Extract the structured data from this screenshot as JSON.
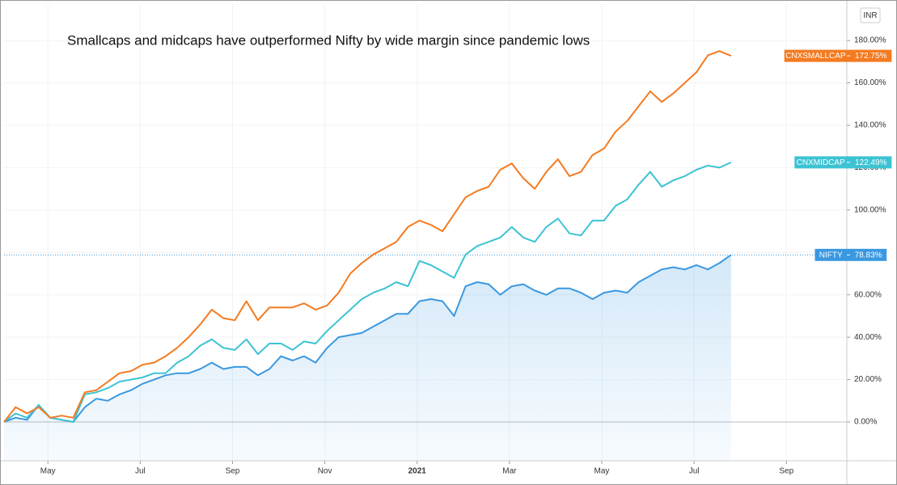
{
  "chart_data": {
    "type": "line",
    "title": "Smallcaps and midcaps have outperformed Nifty by wide margin since pandemic lows",
    "currency": "INR",
    "x": [
      3.05,
      3.3,
      3.55,
      3.8,
      4.05,
      4.3,
      4.55,
      4.8,
      5.05,
      5.3,
      5.55,
      5.8,
      6.05,
      6.3,
      6.55,
      6.8,
      7.05,
      7.3,
      7.55,
      7.8,
      8.05,
      8.3,
      8.55,
      8.8,
      9.05,
      9.3,
      9.55,
      9.8,
      10.05,
      10.3,
      10.55,
      10.8,
      11.05,
      11.3,
      11.55,
      11.8,
      12.05,
      12.3,
      12.55,
      12.8,
      13.05,
      13.3,
      13.55,
      13.8,
      14.05,
      14.3,
      14.55,
      14.8,
      15.05,
      15.3,
      15.55,
      15.8,
      16.05,
      16.3,
      16.55,
      16.8,
      17.05,
      17.3,
      17.55,
      17.8,
      18.05,
      18.3,
      18.55,
      18.8
    ],
    "series": [
      {
        "name": "CNXSMALLCAP",
        "color": "#f47b20",
        "end_label": "172.75%",
        "values": [
          0,
          7,
          4,
          7,
          2,
          3,
          2,
          14,
          15,
          19,
          23,
          24,
          27,
          28,
          31,
          35,
          40,
          46,
          53,
          49,
          48,
          57,
          48,
          54,
          54,
          54,
          56,
          53,
          55,
          61,
          70,
          75,
          79,
          82,
          85,
          92,
          95,
          93,
          90,
          98,
          106,
          109,
          111,
          119,
          122,
          115,
          110,
          118,
          124,
          116,
          118,
          126,
          129,
          137,
          142,
          149,
          156,
          151,
          155,
          160,
          165,
          173,
          175,
          172.75
        ]
      },
      {
        "name": "CNXMIDCAP",
        "color": "#3cc3d3",
        "end_label": "122.49%",
        "values": [
          0,
          4,
          2,
          8,
          2,
          1,
          0,
          13,
          14,
          16,
          19,
          20,
          21,
          23,
          23,
          28,
          31,
          36,
          39,
          35,
          34,
          39,
          32,
          37,
          37,
          34,
          38,
          37,
          43,
          48,
          53,
          58,
          61,
          63,
          66,
          64,
          76,
          74,
          71,
          68,
          79,
          83,
          85,
          87,
          92,
          87,
          85,
          92,
          96,
          89,
          88,
          95,
          95,
          102,
          105,
          112,
          118,
          111,
          114,
          116,
          119,
          121,
          120,
          122.49
        ]
      },
      {
        "name": "NIFTY",
        "color": "#3a98e0",
        "end_label": "78.83%",
        "area": true,
        "price_line": true,
        "values": [
          0,
          2,
          1,
          8,
          2,
          1,
          0,
          7,
          11,
          10,
          13,
          15,
          18,
          20,
          22,
          23,
          23,
          25,
          28,
          25,
          26,
          26,
          22,
          25,
          31,
          29,
          31,
          28,
          35,
          40,
          41,
          42,
          45,
          48,
          51,
          51,
          57,
          58,
          57,
          50,
          64,
          66,
          65,
          60,
          64,
          65,
          62,
          60,
          63,
          63,
          61,
          58,
          61,
          62,
          61,
          66,
          69,
          72,
          73,
          72,
          74,
          72,
          75,
          78.83
        ]
      }
    ],
    "xlim": [
      3.05,
      21.31
    ],
    "xticks": [
      {
        "value": 4,
        "label": "May"
      },
      {
        "value": 6,
        "label": "Jul"
      },
      {
        "value": 8,
        "label": "Sep"
      },
      {
        "value": 10,
        "label": "Nov"
      },
      {
        "value": 12,
        "label": "2021"
      },
      {
        "value": 14,
        "label": "Mar"
      },
      {
        "value": 16,
        "label": "May"
      },
      {
        "value": 18,
        "label": "Jul"
      },
      {
        "value": 20,
        "label": "Sep"
      }
    ],
    "ylim": [
      -18.3,
      197.2
    ],
    "yticks": [
      {
        "value": 0,
        "label": "0.00%"
      },
      {
        "value": 20,
        "label": "20.00%"
      },
      {
        "value": 40,
        "label": "40.00%"
      },
      {
        "value": 60,
        "label": "60.00%"
      },
      {
        "value": 80,
        "label": "80.00%"
      },
      {
        "value": 100,
        "label": "100.00%"
      },
      {
        "value": 120,
        "label": "120.00%"
      },
      {
        "value": 140,
        "label": "140.00%"
      },
      {
        "value": 160,
        "label": "160.00%"
      },
      {
        "value": 180,
        "label": "180.00%"
      }
    ],
    "grid": true
  }
}
